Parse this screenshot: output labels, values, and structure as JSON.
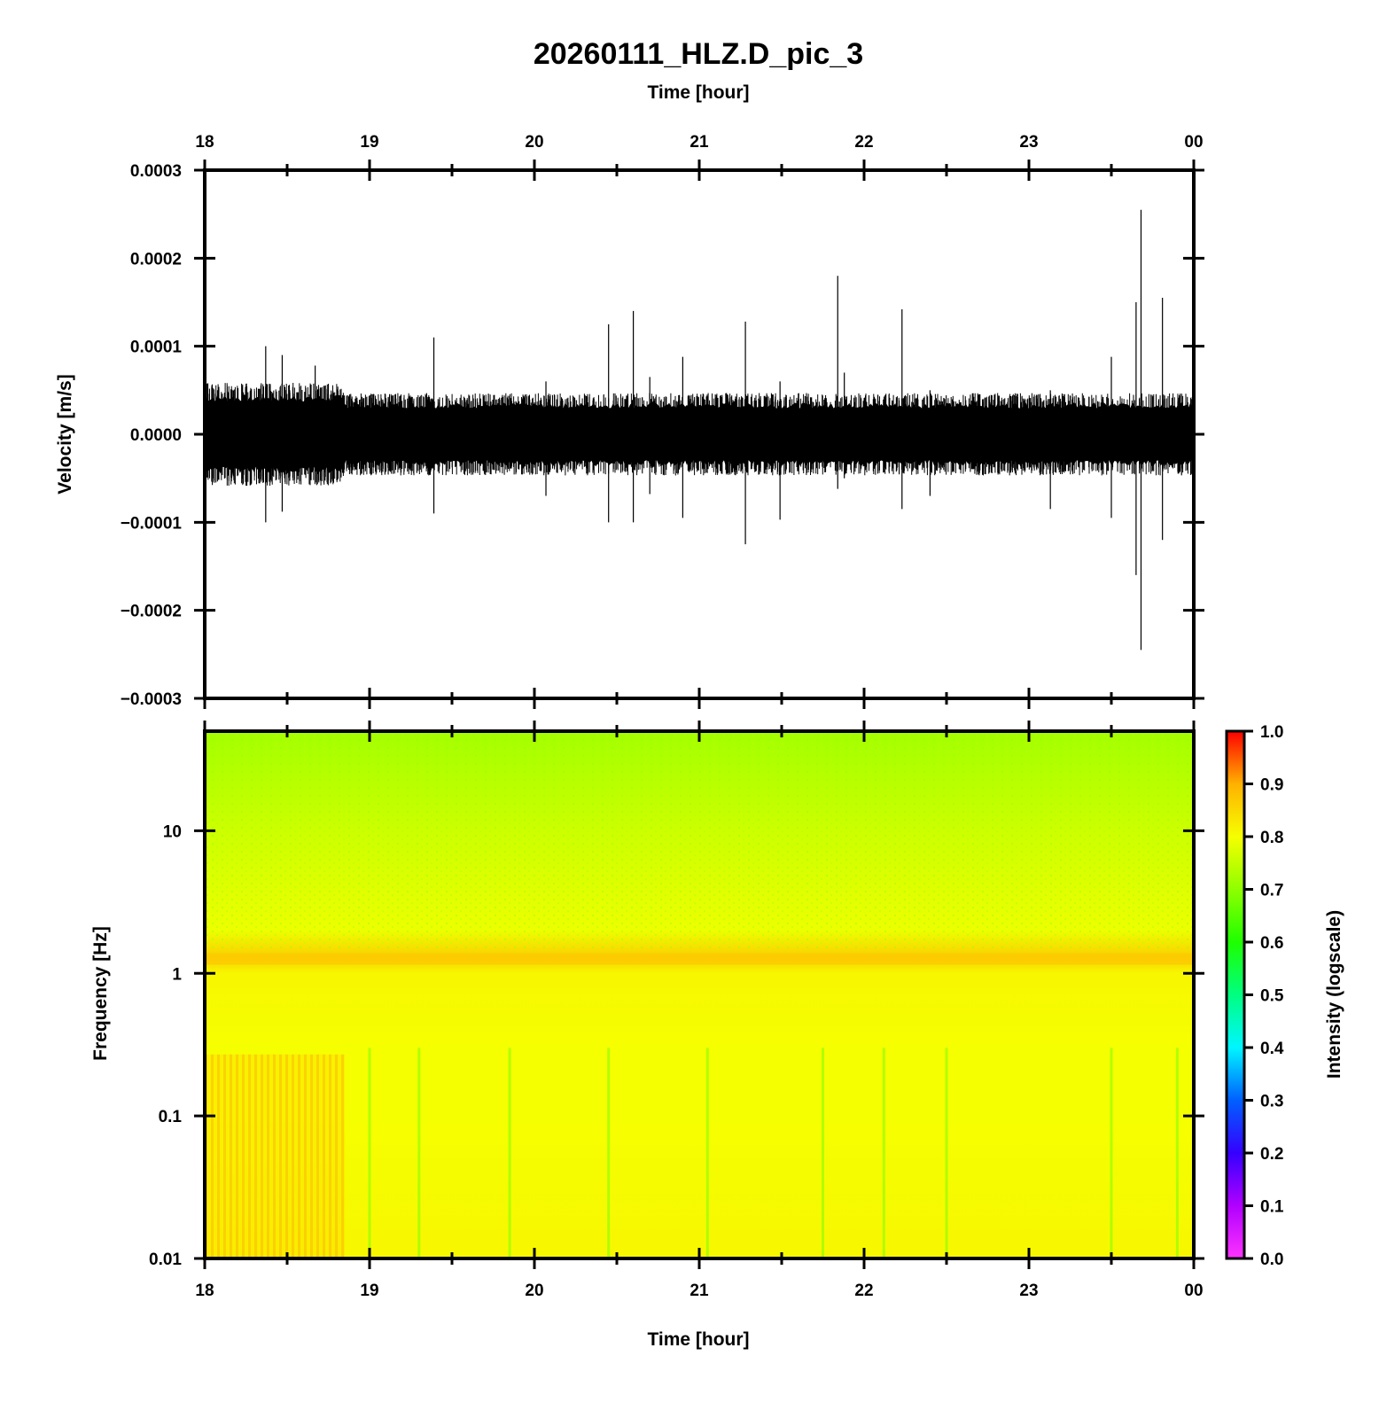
{
  "title": "20260111_HLZ.D_pic_3",
  "chart_data": [
    {
      "type": "line",
      "panel": "waveform",
      "xlabel": "Time [hour]",
      "ylabel": "Velocity [m/s]",
      "xlim": [
        18,
        24
      ],
      "ylim": [
        -0.0003,
        0.0003
      ],
      "x_tick_labels": [
        "18",
        "19",
        "20",
        "21",
        "22",
        "23",
        "00"
      ],
      "y_ticks": [
        {
          "value": 0.0003,
          "label": "0.0003"
        },
        {
          "value": 0.0002,
          "label": "0.0002"
        },
        {
          "value": 0.0001,
          "label": "0.0001"
        },
        {
          "value": 0.0,
          "label": "0.0000"
        },
        {
          "value": -0.0001,
          "label": "−0.0001"
        },
        {
          "value": -0.0002,
          "label": "−0.0002"
        },
        {
          "value": -0.0003,
          "label": "−0.0003"
        }
      ],
      "color": "#000000",
      "noise_envelope": [
        {
          "x": 18.0,
          "y": 4.5e-05
        },
        {
          "x": 18.83,
          "y": 4.5e-05
        },
        {
          "x": 18.85,
          "y": 3.6e-05
        },
        {
          "x": 24.0,
          "y": 3.6e-05
        }
      ],
      "spikes": [
        {
          "x": 18.37,
          "max": 0.0001,
          "min": -0.0001
        },
        {
          "x": 18.47,
          "max": 9e-05,
          "min": -8.8e-05
        },
        {
          "x": 18.67,
          "max": 7.8e-05,
          "min": -5e-05
        },
        {
          "x": 19.39,
          "max": 0.00011,
          "min": -9e-05
        },
        {
          "x": 20.07,
          "max": 6e-05,
          "min": -7e-05
        },
        {
          "x": 20.45,
          "max": 0.000125,
          "min": -0.0001
        },
        {
          "x": 20.6,
          "max": 0.00014,
          "min": -0.0001
        },
        {
          "x": 20.7,
          "max": 6.5e-05,
          "min": -6.8e-05
        },
        {
          "x": 20.9,
          "max": 8.8e-05,
          "min": -9.5e-05
        },
        {
          "x": 21.28,
          "max": 0.000128,
          "min": -0.000125
        },
        {
          "x": 21.49,
          "max": 6e-05,
          "min": -9.7e-05
        },
        {
          "x": 21.84,
          "max": 0.00018,
          "min": -6.2e-05
        },
        {
          "x": 21.88,
          "max": 7e-05,
          "min": -5e-05
        },
        {
          "x": 22.23,
          "max": 0.000142,
          "min": -8.5e-05
        },
        {
          "x": 22.4,
          "max": 5e-05,
          "min": -7e-05
        },
        {
          "x": 23.13,
          "max": 5e-05,
          "min": -8.5e-05
        },
        {
          "x": 23.5,
          "max": 8.8e-05,
          "min": -9.5e-05
        },
        {
          "x": 23.65,
          "max": 0.00015,
          "min": -0.00016
        },
        {
          "x": 23.68,
          "max": 0.000255,
          "min": -0.000245
        },
        {
          "x": 23.81,
          "max": 0.000155,
          "min": -0.00012
        }
      ]
    },
    {
      "type": "heatmap",
      "panel": "spectrogram",
      "xlabel": "Time [hour]",
      "ylabel": "Frequency [Hz]",
      "xlim": [
        18,
        24
      ],
      "ylim": [
        0.01,
        50
      ],
      "yscale": "log",
      "x_tick_labels": [
        "18",
        "19",
        "20",
        "21",
        "22",
        "23",
        "00"
      ],
      "y_ticks": [
        {
          "value": 10,
          "label": "10"
        },
        {
          "value": 1,
          "label": "1"
        },
        {
          "value": 0.1,
          "label": "0.1"
        },
        {
          "value": 0.01,
          "label": "0.01"
        }
      ],
      "colorbar": {
        "label": "Intensity (logscale)",
        "range": [
          0,
          1
        ],
        "tick_labels": [
          "0.0",
          "0.1",
          "0.2",
          "0.3",
          "0.4",
          "0.5",
          "0.6",
          "0.7",
          "0.8",
          "0.9",
          "1.0"
        ],
        "colors": [
          {
            "v": 0.0,
            "color": "#ff33ff"
          },
          {
            "v": 0.1,
            "color": "#b000ff"
          },
          {
            "v": 0.2,
            "color": "#3500ff"
          },
          {
            "v": 0.3,
            "color": "#0060ff"
          },
          {
            "v": 0.4,
            "color": "#00f6ff"
          },
          {
            "v": 0.5,
            "color": "#00ff80"
          },
          {
            "v": 0.6,
            "color": "#1eff00"
          },
          {
            "v": 0.7,
            "color": "#8eff00"
          },
          {
            "v": 0.8,
            "color": "#f6ff00"
          },
          {
            "v": 0.9,
            "color": "#ffb100"
          },
          {
            "v": 1.0,
            "color": "#ff0000"
          }
        ]
      },
      "intensity_profile": [
        {
          "freq": 50,
          "intensity": 0.72
        },
        {
          "freq": 10,
          "intensity": 0.76
        },
        {
          "freq": 2,
          "intensity": 0.79
        },
        {
          "freq": 1.3,
          "intensity": 0.86
        },
        {
          "freq": 1.0,
          "intensity": 0.81
        },
        {
          "freq": 0.3,
          "intensity": 0.8
        },
        {
          "freq": 0.1,
          "intensity": 0.8
        },
        {
          "freq": 0.01,
          "intensity": 0.81
        }
      ],
      "high_noise_interval": {
        "x": [
          18.0,
          18.85
        ],
        "freq": [
          0.01,
          0.27
        ],
        "intensity": 0.85
      },
      "low_freq_stripes": [
        19.0,
        19.3,
        19.85,
        20.45,
        21.05,
        21.75,
        22.12,
        22.5,
        23.5,
        23.9
      ]
    }
  ]
}
